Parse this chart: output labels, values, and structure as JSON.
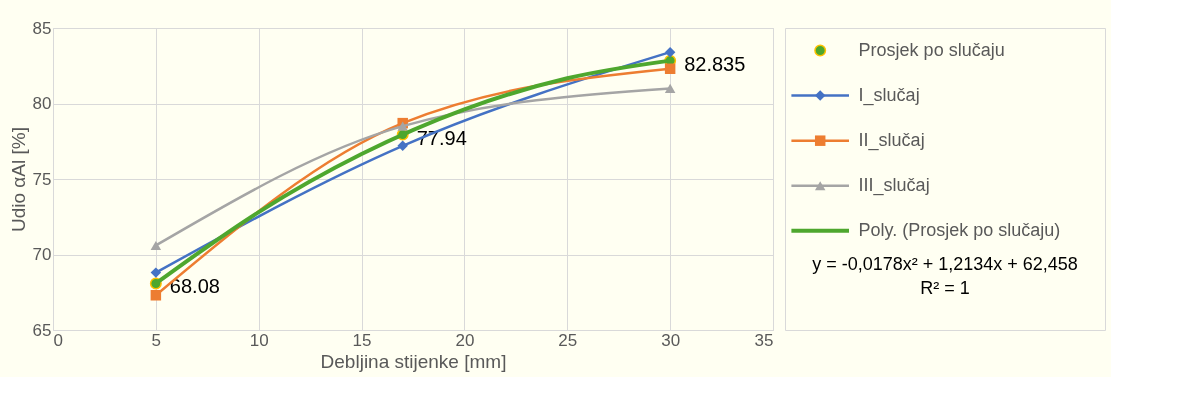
{
  "chart_data": {
    "type": "line",
    "xlabel": "Debljina stijenke [mm]",
    "ylabel": "Udio αAl [%]",
    "xlim": [
      0,
      35
    ],
    "xticks": [
      0,
      5,
      10,
      15,
      20,
      25,
      30,
      35
    ],
    "ylim": [
      65,
      85
    ],
    "yticks": [
      65,
      70,
      75,
      80,
      85
    ],
    "grid": true,
    "legend": "right",
    "line_style": "solid",
    "x": [
      5,
      17,
      30
    ],
    "series": [
      {
        "name": "Prosjek po slučaju",
        "type": "scatter",
        "marker": "circle",
        "color": "#4ea72e",
        "values": [
          68.08,
          77.94,
          82.835
        ],
        "value_labels": [
          "68.08",
          "77.94",
          "82.835"
        ]
      },
      {
        "name": "I_slučaj",
        "type": "line",
        "marker": "diamond",
        "color": "#4472c4",
        "values": [
          68.8,
          77.2,
          83.4
        ]
      },
      {
        "name": "II_slučaj",
        "type": "line",
        "marker": "square",
        "color": "#ed7d31",
        "values": [
          67.3,
          78.7,
          82.3
        ]
      },
      {
        "name": "III_slučaj",
        "type": "line",
        "marker": "triangle",
        "color": "#a5a5a5",
        "values": [
          70.6,
          78.5,
          81.0
        ]
      },
      {
        "name": "Poly. (Prosjek po slučaju)",
        "type": "line",
        "marker": "none",
        "color": "#4ea72e",
        "x": [
          5,
          10,
          15,
          20,
          25,
          30
        ],
        "values": [
          68.08,
          72.81,
          76.65,
          79.61,
          81.67,
          82.84
        ]
      }
    ],
    "annotations": [
      "y = -0,0178x² + 1,2134x + 62,458",
      "R² = 1"
    ]
  }
}
